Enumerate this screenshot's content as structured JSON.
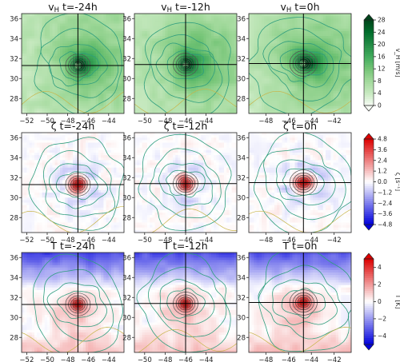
{
  "chart_data": {
    "type": "heatmap",
    "rows": [
      {
        "variable": "vH",
        "colormap": "greens",
        "colorbar": {
          "label": "v_H [m/s]",
          "ticks": [
            "0",
            "4",
            "8",
            "12",
            "16",
            "20",
            "24",
            "28"
          ],
          "range": [
            0,
            28
          ],
          "extend": "min"
        },
        "panels": [
          {
            "title_sym": "v",
            "title_sub": "H",
            "title_time": "t=-24h",
            "xticks": [
              "−52",
              "−50",
              "−48",
              "−46",
              "−44"
            ],
            "yticks": [
              "36",
              "34",
              "32",
              "30",
              "28"
            ],
            "xlim": [
              -52.5,
              -42.5
            ],
            "ylim": [
              26.5,
              36.5
            ],
            "center": [
              -47.0,
              31.3
            ]
          },
          {
            "title_sym": "v",
            "title_sub": "H",
            "title_time": "t=-12h",
            "xticks": [
              "−50",
              "−48",
              "−46",
              "−44"
            ],
            "yticks": [
              "36",
              "34",
              "32",
              "30",
              "28"
            ],
            "xlim": [
              -51.0,
              -41.0
            ],
            "ylim": [
              26.5,
              36.5
            ],
            "center": [
              -46.0,
              31.4
            ]
          },
          {
            "title_sym": "v",
            "title_sub": "H",
            "title_time": "t=0h",
            "xticks": [
              "−48",
              "−46",
              "−44",
              "−42"
            ],
            "yticks": [
              "36",
              "34",
              "32",
              "30",
              "28"
            ],
            "xlim": [
              -49.5,
              -40.5
            ],
            "ylim": [
              26.5,
              36.5
            ],
            "center": [
              -44.7,
              31.5
            ]
          }
        ]
      },
      {
        "variable": "zeta",
        "colormap": "bwr",
        "colorbar": {
          "label": "ζ [s⁻¹]",
          "ticks": [
            "4.8",
            "3.6",
            "2.4",
            "1.2",
            "0.0",
            "−1.2",
            "−2.4",
            "−3.6",
            "−4.8"
          ],
          "range": [
            -4.8,
            4.8
          ],
          "extend": "both"
        },
        "panels": [
          {
            "title_sym": "ζ",
            "title_sub": "",
            "title_time": "t=-24h",
            "xticks": [
              "−52",
              "−50",
              "−48",
              "−46",
              "−44"
            ],
            "yticks": [
              "36",
              "34",
              "32",
              "30",
              "28"
            ],
            "xlim": [
              -52.5,
              -42.5
            ],
            "ylim": [
              26.5,
              36.5
            ],
            "center": [
              -47.0,
              31.3
            ]
          },
          {
            "title_sym": "ζ",
            "title_sub": "",
            "title_time": "t=-12h",
            "xticks": [
              "−50",
              "−48",
              "−46",
              "−44"
            ],
            "yticks": [
              "36",
              "34",
              "32",
              "30",
              "28"
            ],
            "xlim": [
              -51.0,
              -41.0
            ],
            "ylim": [
              26.5,
              36.5
            ],
            "center": [
              -46.0,
              31.4
            ]
          },
          {
            "title_sym": "ζ",
            "title_sub": "",
            "title_time": "t=0h",
            "xticks": [
              "−48",
              "−46",
              "−44",
              "−42"
            ],
            "yticks": [
              "36",
              "34",
              "32",
              "30",
              "28"
            ],
            "xlim": [
              -49.5,
              -40.5
            ],
            "ylim": [
              26.5,
              36.5
            ],
            "center": [
              -44.7,
              31.5
            ]
          }
        ]
      },
      {
        "variable": "T",
        "colormap": "bwr",
        "colorbar": {
          "label": "T [K]",
          "ticks": [
            "4",
            "2",
            "0",
            "−2",
            "−4"
          ],
          "range": [
            -5,
            5
          ],
          "extend": "both"
        },
        "panels": [
          {
            "title_sym": "T",
            "title_sub": "",
            "title_time": "t=-24h",
            "xticks": [
              "−52",
              "−50",
              "−48",
              "−46",
              "−44"
            ],
            "yticks": [
              "36",
              "34",
              "32",
              "30",
              "28"
            ],
            "xlim": [
              -52.5,
              -42.5
            ],
            "ylim": [
              26.5,
              36.5
            ],
            "center": [
              -47.0,
              31.3
            ]
          },
          {
            "title_sym": "T",
            "title_sub": "",
            "title_time": "t=-12h",
            "xticks": [
              "−50",
              "−48",
              "−46",
              "−44"
            ],
            "yticks": [
              "36",
              "34",
              "32",
              "30",
              "28"
            ],
            "xlim": [
              -51.0,
              -41.0
            ],
            "ylim": [
              26.5,
              36.5
            ],
            "center": [
              -46.0,
              31.4
            ]
          },
          {
            "title_sym": "T",
            "title_sub": "",
            "title_time": "t=0h",
            "xticks": [
              "−48",
              "−46",
              "−44",
              "−42"
            ],
            "yticks": [
              "36",
              "34",
              "32",
              "30",
              "28"
            ],
            "xlim": [
              -49.5,
              -40.5
            ],
            "ylim": [
              26.5,
              36.5
            ],
            "center": [
              -44.7,
              31.5
            ]
          }
        ]
      }
    ]
  }
}
